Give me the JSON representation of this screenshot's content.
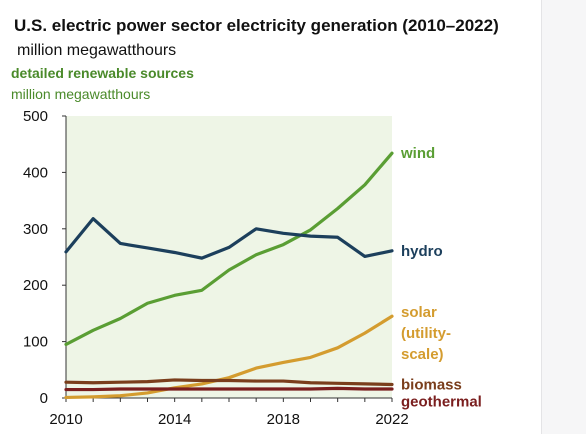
{
  "header": {
    "title": "U.S. electric power sector electricity generation (2010–2022)",
    "units": "million megawatthours"
  },
  "chart_data": {
    "type": "line",
    "title": "detailed renewable sources",
    "ylabel": "million megawatthours",
    "xlabel": "",
    "x": [
      2010,
      2011,
      2012,
      2013,
      2014,
      2015,
      2016,
      2017,
      2018,
      2019,
      2020,
      2021,
      2022
    ],
    "xticks": [
      "2010",
      "2014",
      "2018",
      "2022"
    ],
    "yticks": [
      "0",
      "100",
      "200",
      "300",
      "400",
      "500"
    ],
    "xlim": [
      2010,
      2022
    ],
    "ylim": [
      0,
      500
    ],
    "grid": false,
    "background": "#eef5e6",
    "legend": "direct labels at right end of lines",
    "series": [
      {
        "name": "wind",
        "color": "#5a9e34",
        "values": [
          95,
          120,
          141,
          168,
          182,
          191,
          227,
          254,
          272,
          298,
          336,
          378,
          434
        ],
        "label_lines": [
          "wind"
        ]
      },
      {
        "name": "hydro",
        "color": "#1c3f5c",
        "values": [
          259,
          318,
          274,
          266,
          258,
          248,
          267,
          300,
          292,
          287,
          285,
          251,
          261
        ],
        "label_lines": [
          "hydro"
        ]
      },
      {
        "name": "solar (utility-scale)",
        "color": "#d49c2f",
        "values": [
          1,
          2,
          4,
          9,
          18,
          25,
          36,
          53,
          63,
          72,
          89,
          115,
          145
        ],
        "label_lines": [
          "solar",
          "(utility-",
          "scale)"
        ]
      },
      {
        "name": "biomass",
        "color": "#7a3e1c",
        "values": [
          28,
          27,
          28,
          29,
          32,
          31,
          31,
          30,
          30,
          27,
          26,
          25,
          24
        ],
        "label_lines": [
          "biomass"
        ]
      },
      {
        "name": "geothermal",
        "color": "#7a1e1e",
        "values": [
          15,
          15,
          16,
          16,
          16,
          16,
          16,
          16,
          16,
          16,
          17,
          16,
          16
        ],
        "label_lines": [
          "geothermal"
        ]
      }
    ]
  }
}
